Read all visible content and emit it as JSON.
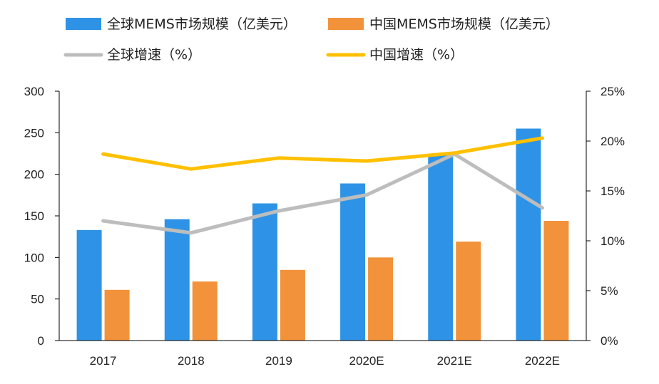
{
  "chart_data": {
    "type": "bar",
    "categories": [
      "2017",
      "2018",
      "2019",
      "2020E",
      "2021E",
      "2022E"
    ],
    "series": [
      {
        "name": "全球MEMS市场规模（亿美元）",
        "kind": "bar",
        "axis": "left",
        "color": "#2E93E6",
        "values": [
          133,
          146,
          165,
          189,
          223,
          255
        ]
      },
      {
        "name": "中国MEMS市场规模（亿美元）",
        "kind": "bar",
        "axis": "left",
        "color": "#F2923A",
        "values": [
          61,
          71,
          85,
          100,
          119,
          144
        ]
      },
      {
        "name": "全球增速（%）",
        "kind": "line",
        "axis": "right",
        "color": "#BDBDBD",
        "values": [
          12.0,
          10.8,
          13.0,
          14.6,
          18.7,
          13.3
        ]
      },
      {
        "name": "中国增速（%）",
        "kind": "line",
        "axis": "right",
        "color": "#FFC000",
        "values": [
          18.7,
          17.2,
          18.3,
          18.0,
          18.8,
          20.3
        ]
      }
    ],
    "y_left": {
      "min": 0,
      "max": 300,
      "ticks": [
        "0",
        "50",
        "100",
        "150",
        "200",
        "250",
        "300"
      ]
    },
    "y_right": {
      "min": 0,
      "max": 25,
      "ticks": [
        "0%",
        "5%",
        "10%",
        "15%",
        "20%",
        "25%"
      ]
    },
    "grid": false,
    "legend_position": "top"
  }
}
